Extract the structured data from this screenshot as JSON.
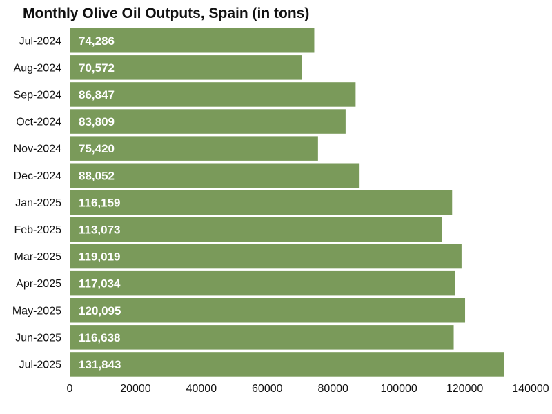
{
  "chart_data": {
    "type": "bar",
    "orientation": "horizontal",
    "title": "Monthly Olive Oil Outputs, Spain (in tons)",
    "categories": [
      "Jul-2024",
      "Aug-2024",
      "Sep-2024",
      "Oct-2024",
      "Nov-2024",
      "Dec-2024",
      "Jan-2025",
      "Feb-2025",
      "Mar-2025",
      "Apr-2025",
      "May-2025",
      "Jun-2025",
      "Jul-2025"
    ],
    "values": [
      74286,
      70572,
      86847,
      83809,
      75420,
      88052,
      116159,
      113073,
      119019,
      117034,
      120095,
      116638,
      131843
    ],
    "value_labels": [
      "74,286",
      "70,572",
      "86,847",
      "83,809",
      "75,420",
      "88,052",
      "116,159",
      "113,073",
      "119,019",
      "117,034",
      "120,095",
      "116,638",
      "131,843"
    ],
    "xlim": [
      0,
      140000
    ],
    "x_ticks": [
      "0",
      "20000",
      "40000",
      "60000",
      "80000",
      "100000",
      "120000",
      "140000"
    ],
    "xlabel": "",
    "ylabel": "",
    "grid": false,
    "legend": "none",
    "bar_color": "#7a9a5a",
    "value_label_color": "#ffffff"
  }
}
